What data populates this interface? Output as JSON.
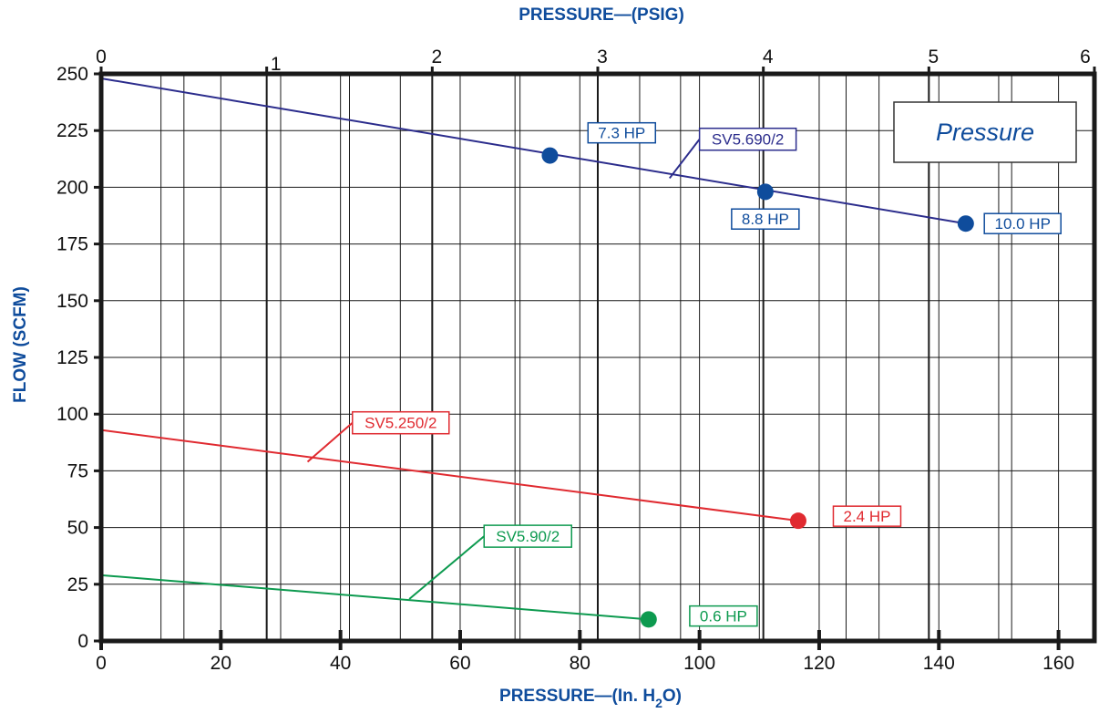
{
  "chart_data": {
    "type": "line",
    "title": "",
    "xlabel": "PRESSURE—(In. H",
    "xlabel_sub": "2",
    "xlabel_end": "O)",
    "x2label": "PRESSURE—(PSIG)",
    "ylabel": "FLOW  (SCFM)",
    "legend_box": "Pressure",
    "xlim": [
      0,
      166
    ],
    "ylim": [
      0,
      250
    ],
    "x_ticks": [
      "0",
      "20",
      "40",
      "60",
      "80",
      "100",
      "120",
      "140",
      "160"
    ],
    "x2lim": [
      0,
      6
    ],
    "x2_ticks": [
      "0",
      "1",
      "2",
      "3",
      "4",
      "5",
      "6"
    ],
    "y_ticks": [
      "0",
      "25",
      "50",
      "75",
      "100",
      "125",
      "150",
      "175",
      "200",
      "225",
      "250"
    ],
    "grid": true,
    "series": [
      {
        "name": "SV5.690/2",
        "color": "#2b2c8c",
        "x": [
          0,
          144.5
        ],
        "y": [
          248,
          184
        ],
        "callout_at": [
          95,
          204
        ],
        "callout_box": [
          100,
          226
        ],
        "points": [
          {
            "x": 75,
            "y": 214,
            "label": "7.3 HP",
            "color": "#0f4c9c",
            "box_at": [
              87,
              224
            ],
            "leader": false
          },
          {
            "x": 111,
            "y": 198,
            "label": "8.8 HP",
            "color": "#0f4c9c",
            "box_at": [
              111,
              186
            ],
            "leader": false
          },
          {
            "x": 144.5,
            "y": 184,
            "label": "10.0 HP",
            "color": "#0f4c9c",
            "box_at": [
              154,
              184
            ],
            "leader": false
          }
        ]
      },
      {
        "name": "SV5.250/2",
        "color": "#e02a30",
        "x": [
          0,
          116.5
        ],
        "y": [
          93,
          53
        ],
        "callout_at": [
          34.5,
          79
        ],
        "callout_box": [
          42,
          101
        ],
        "points": [
          {
            "x": 116.5,
            "y": 53,
            "label": "2.4 HP",
            "color": "#e02a30",
            "box_at": [
              128,
              55
            ],
            "leader": false
          }
        ]
      },
      {
        "name": "SV5.90/2",
        "color": "#0d9a4f",
        "x": [
          0,
          91.5
        ],
        "y": [
          29,
          9.5
        ],
        "callout_at": [
          51.5,
          18.5
        ],
        "callout_box": [
          64,
          51
        ],
        "points": [
          {
            "x": 91.5,
            "y": 9.5,
            "label": "0.6 HP",
            "color": "#0d9a4f",
            "box_at": [
              104,
              11
            ],
            "leader": false
          }
        ]
      }
    ]
  },
  "colors": {
    "axis_title": "#0f4c9c",
    "frame": "#1a1a1a",
    "grid": "#1a1a1a"
  }
}
